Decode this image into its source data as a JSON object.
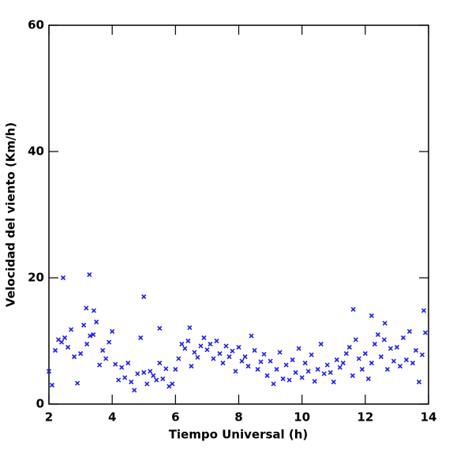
{
  "chart_data": {
    "type": "scatter",
    "xlabel": "Tiempo Universal (h)",
    "ylabel": "Velocidad del viento (Km/h)",
    "color": "#1f1fe6",
    "xlim": [
      2,
      14
    ],
    "xticks": [
      2,
      4,
      6,
      8,
      10,
      12,
      14
    ],
    "ylim": [
      0,
      60
    ],
    "yticks": [
      0,
      20,
      40,
      60
    ],
    "x": [
      2.0,
      2.1,
      2.2,
      2.3,
      2.4,
      2.5,
      2.6,
      2.7,
      2.8,
      2.9,
      3.0,
      3.1,
      3.2,
      3.3,
      3.4,
      3.5,
      3.6,
      3.7,
      3.8,
      3.9,
      4.0,
      4.1,
      4.2,
      4.3,
      4.4,
      4.5,
      4.6,
      4.7,
      4.8,
      4.9,
      5.0,
      5.1,
      5.2,
      5.3,
      5.4,
      5.5,
      5.6,
      5.7,
      5.8,
      5.9,
      6.0,
      6.1,
      6.2,
      6.3,
      6.4,
      6.5,
      6.6,
      6.7,
      6.8,
      6.9,
      7.0,
      7.1,
      7.2,
      7.3,
      7.4,
      7.5,
      7.6,
      7.7,
      7.8,
      7.9,
      8.0,
      8.1,
      8.2,
      8.3,
      8.4,
      8.5,
      8.6,
      8.7,
      8.8,
      8.9,
      9.0,
      9.1,
      9.2,
      9.3,
      9.4,
      9.5,
      9.6,
      9.7,
      9.8,
      9.9,
      10.0,
      10.1,
      10.2,
      10.3,
      10.4,
      10.5,
      10.6,
      10.7,
      10.8,
      10.9,
      11.0,
      11.1,
      11.2,
      11.3,
      11.4,
      11.5,
      11.6,
      11.7,
      11.8,
      11.9,
      12.0,
      12.1,
      12.2,
      12.3,
      12.4,
      12.5,
      12.6,
      12.7,
      12.8,
      12.9,
      13.0,
      13.1,
      13.2,
      13.3,
      13.4,
      13.5,
      13.6,
      13.7,
      13.8,
      13.9,
      2.45,
      3.28,
      5.0,
      3.18,
      3.42,
      5.5,
      6.45,
      11.62,
      12.2,
      13.85,
      12.62
    ],
    "values": [
      5.2,
      3,
      8.5,
      10.2,
      9.8,
      10.5,
      9,
      11.8,
      7.5,
      3.3,
      8,
      12.5,
      9.5,
      10.8,
      11,
      13,
      6.2,
      8.5,
      7.2,
      9.8,
      11.5,
      6.3,
      3.8,
      5.8,
      4.2,
      6.5,
      3.5,
      2.2,
      4.8,
      10.5,
      5,
      3.2,
      5.2,
      4.5,
      3.8,
      6.5,
      4,
      5.6,
      2.8,
      3.2,
      5.5,
      7.2,
      9.5,
      8.8,
      10,
      6,
      8.2,
      7.4,
      9.2,
      10.5,
      8.6,
      9.5,
      7.2,
      10,
      8,
      6.5,
      9.2,
      7.5,
      8.4,
      5.2,
      9,
      6.8,
      7.5,
      6,
      10.8,
      8.5,
      5.5,
      6.7,
      7.9,
      4.5,
      6.8,
      3.2,
      5.5,
      8.2,
      4,
      6.2,
      3.8,
      7,
      5,
      8.8,
      4.2,
      6.5,
      5.2,
      7.8,
      3.6,
      5.5,
      9.5,
      4.8,
      6.2,
      5,
      3.5,
      7,
      5.8,
      6.5,
      8,
      9,
      4.5,
      10.2,
      7.2,
      5.5,
      8,
      4,
      6.5,
      9.5,
      11,
      7.5,
      10.2,
      5.5,
      8.8,
      6.8,
      9,
      6,
      10.5,
      7,
      11.5,
      6.5,
      8.5,
      3.5,
      7.8,
      11.3,
      20,
      20.5,
      17,
      15.2,
      14.8,
      12,
      12.1,
      15,
      14,
      14.8,
      12.8
    ]
  }
}
